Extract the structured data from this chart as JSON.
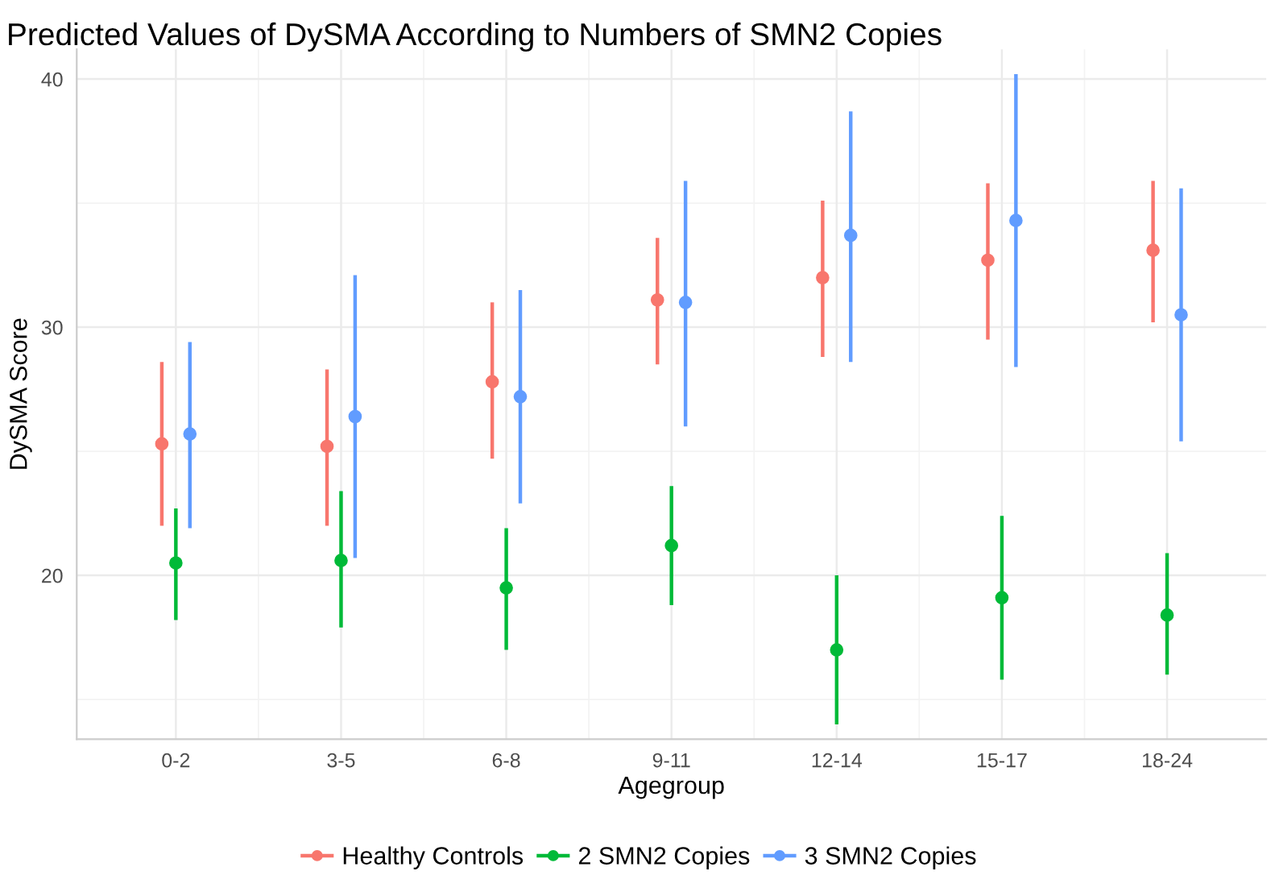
{
  "chart_data": {
    "type": "scatter",
    "title": "Predicted Values of DySMA According to Numbers of SMN2 Copies",
    "xlabel": "Agegroup",
    "ylabel": "DySMA Score",
    "categories": [
      "0-2",
      "3-5",
      "6-8",
      "9-11",
      "12-14",
      "15-17",
      "18-24"
    ],
    "series": [
      {
        "name": "Healthy Controls",
        "color": "#f8766d",
        "values": [
          25.3,
          25.2,
          27.8,
          31.1,
          32.0,
          32.7,
          33.1
        ],
        "errors": [
          [
            22.0,
            28.6
          ],
          [
            22.0,
            28.3
          ],
          [
            24.7,
            31.0
          ],
          [
            28.5,
            33.6
          ],
          [
            28.8,
            35.1
          ],
          [
            29.5,
            35.8
          ],
          [
            30.2,
            35.9
          ]
        ]
      },
      {
        "name": "2 SMN2 Copies",
        "color": "#00ba38",
        "values": [
          20.5,
          20.6,
          19.5,
          21.2,
          17.0,
          19.1,
          18.4
        ],
        "errors": [
          [
            18.2,
            22.7
          ],
          [
            17.9,
            23.4
          ],
          [
            17.0,
            21.9
          ],
          [
            18.8,
            23.6
          ],
          [
            14.0,
            20.0
          ],
          [
            15.8,
            22.4
          ],
          [
            16.0,
            20.9
          ]
        ]
      },
      {
        "name": "3 SMN2 Copies",
        "color": "#619cff",
        "values": [
          25.7,
          26.4,
          27.2,
          31.0,
          33.7,
          34.3,
          30.5
        ],
        "errors": [
          [
            21.9,
            29.4
          ],
          [
            20.7,
            32.1
          ],
          [
            22.9,
            31.5
          ],
          [
            26.0,
            35.9
          ],
          [
            28.6,
            38.7
          ],
          [
            28.4,
            40.2
          ],
          [
            25.4,
            35.6
          ]
        ]
      }
    ],
    "ylim": [
      13.4,
      41.2
    ],
    "yticks": [
      20,
      30,
      40
    ],
    "grid": true,
    "legend": "bottom",
    "marker": "circle"
  }
}
